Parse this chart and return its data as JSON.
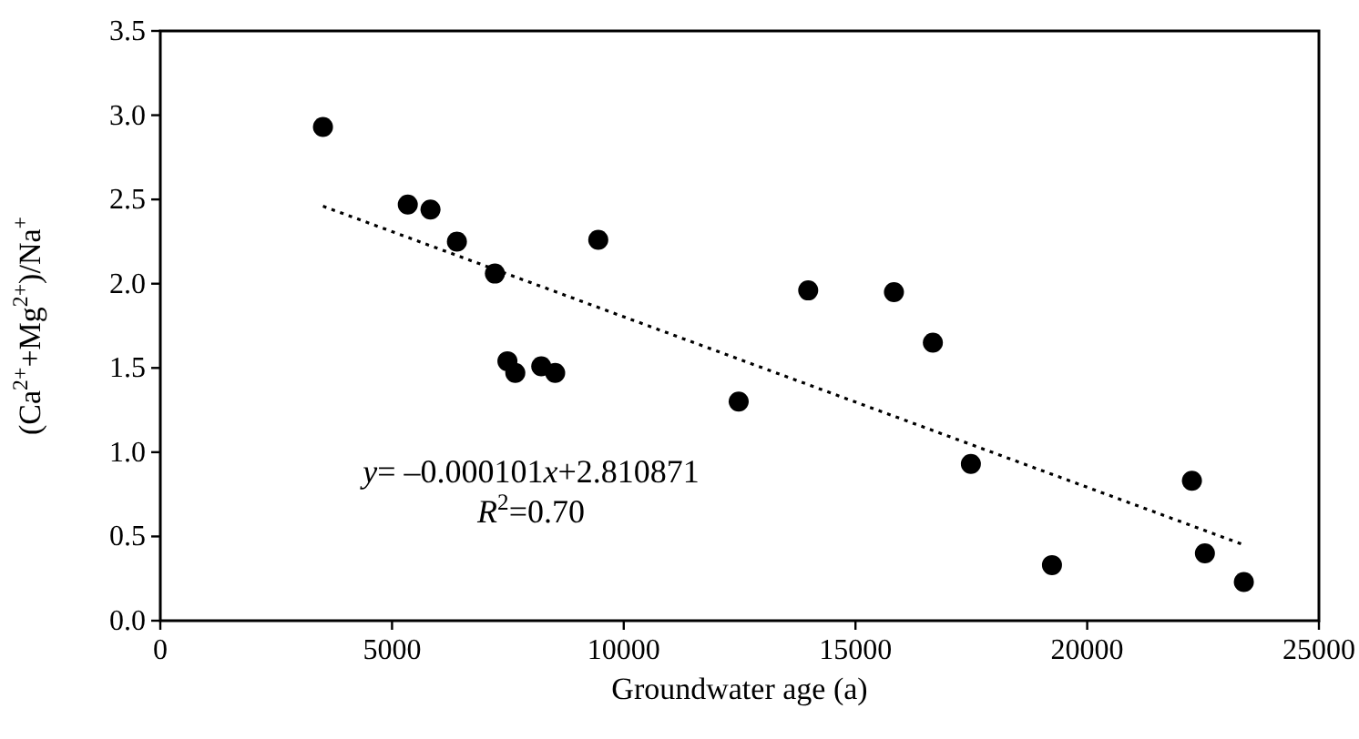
{
  "chart_data": {
    "type": "scatter",
    "xlabel": "Groundwater age (a)",
    "ylabel": "(Ca$^{2+}$+Mg$^{2+}$)/Na$^{+}$",
    "xlim": [
      0,
      25000
    ],
    "xticks": [
      0,
      5000,
      10000,
      15000,
      20000,
      25000
    ],
    "ylim": [
      0,
      3.5
    ],
    "yticks": [
      {
        "value": 0,
        "label": "0.0"
      },
      0.5,
      {
        "value": 1,
        "label": "1.0"
      },
      1.5,
      {
        "value": 2,
        "label": "2.0"
      },
      2.5,
      {
        "value": 3,
        "label": "3.0"
      },
      3.5
    ],
    "grid": false,
    "marker": "circle",
    "series": [
      {
        "color": "#000000",
        "x": [
          3510,
          5340,
          5830,
          6400,
          7220,
          9450,
          7490,
          7660,
          8220,
          8520,
          12480,
          13980,
          15830,
          16670,
          17490,
          19240,
          22260,
          22540,
          23380
        ],
        "values": [
          2.93,
          2.47,
          2.44,
          2.25,
          2.06,
          2.26,
          1.54,
          1.47,
          1.51,
          1.47,
          1.3,
          1.96,
          1.95,
          1.65,
          0.93,
          0.33,
          0.83,
          0.4,
          0.23
        ]
      },
      {
        "type": "line",
        "color": "#000000",
        "line_style": "dotted",
        "marker": "none",
        "x": [
          3510,
          23380
        ],
        "values": [
          2.46,
          0.45
        ]
      }
    ],
    "annotations": [
      "y= –0.000101x+2.810871",
      "R$^{2}$=0.70"
    ]
  }
}
